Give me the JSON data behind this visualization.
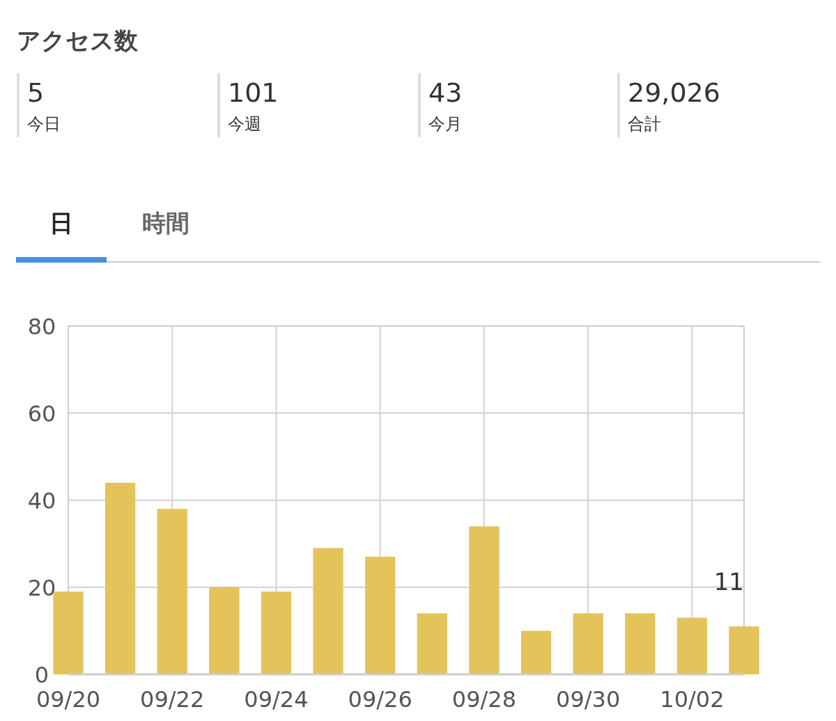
{
  "chart_data": [
    {
      "type": "other",
      "title": "アクセス数",
      "annotations": [
        "5",
        "今日",
        "101",
        "今週",
        "43",
        "今月",
        "29,026",
        "合計"
      ]
    },
    {
      "type": "bar",
      "annotations": [
        "日",
        "時間"
      ],
      "x": [
        "--09-20",
        "--09-21",
        "--09-22",
        "--09-23",
        "--09-24",
        "--09-25",
        "--09-26",
        "--09-27",
        "--09-28",
        "--09-29",
        "--09-30",
        "--10-01",
        "--10-02",
        "--10-03"
      ],
      "values": [
        19,
        44,
        38,
        20,
        19,
        29,
        27,
        14,
        34,
        10,
        14,
        14,
        13,
        11
      ],
      "value_labels": [
        null,
        null,
        null,
        null,
        null,
        null,
        null,
        null,
        null,
        null,
        null,
        null,
        null,
        "11"
      ],
      "color": "#e4c35b",
      "xlim": [
        "--09-20",
        "--10-03"
      ],
      "xticks": [
        {
          "value": "--09-20",
          "label": "09/20"
        },
        {
          "value": "--09-22",
          "label": "09/22"
        },
        {
          "value": "--09-24",
          "label": "09/24"
        },
        {
          "value": "--09-26",
          "label": "09/26"
        },
        {
          "value": "--09-28",
          "label": "09/28"
        },
        {
          "value": "--09-30",
          "label": "09/30"
        },
        {
          "value": "--10-02",
          "label": "10/02"
        }
      ],
      "ylim": [
        0,
        80
      ],
      "yticks": [
        0,
        20,
        40,
        60,
        80
      ],
      "grid": true
    }
  ]
}
